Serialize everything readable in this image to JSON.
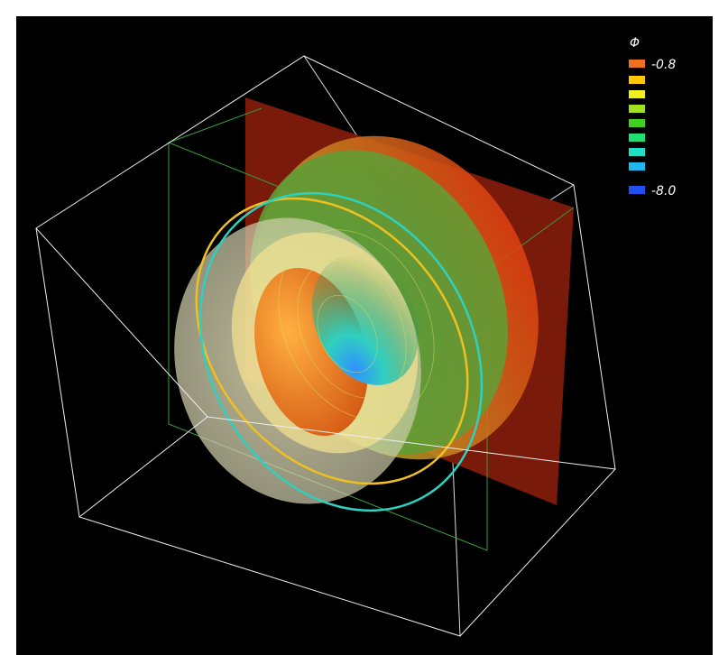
{
  "legend": {
    "title": "Φ",
    "max_label": "-0.8",
    "min_label": "-8.0"
  }
}
